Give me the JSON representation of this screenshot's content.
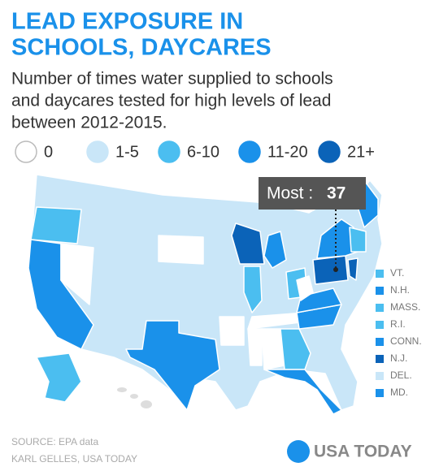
{
  "header": {
    "title_lines": [
      "LEAD EXPOSURE IN",
      "SCHOOLS, DAYCARES"
    ],
    "subtitle_lines": [
      "Number of times water supplied to schools",
      "and daycares tested for high levels of lead",
      "between 2012-2015."
    ]
  },
  "legend": [
    {
      "label": "0",
      "color": "#ffffff"
    },
    {
      "label": "1-5",
      "color": "#c9e6f8"
    },
    {
      "label": "6-10",
      "color": "#4bbef0"
    },
    {
      "label": "11-20",
      "color": "#1a91ea"
    },
    {
      "label": "21+",
      "color": "#0b63b8"
    }
  ],
  "callout": {
    "label": "Most :",
    "value": 37
  },
  "small_states": [
    {
      "label": "VT.",
      "color": "#4bbef0"
    },
    {
      "label": "N.H.",
      "color": "#1a91ea"
    },
    {
      "label": "MASS.",
      "color": "#4bbef0"
    },
    {
      "label": "R.I.",
      "color": "#4bbef0"
    },
    {
      "label": "CONN.",
      "color": "#1a91ea"
    },
    {
      "label": "N.J.",
      "color": "#0b63b8"
    },
    {
      "label": "DEL.",
      "color": "#c9e6f8"
    },
    {
      "label": "MD.",
      "color": "#1a91ea"
    }
  ],
  "footer": {
    "source": "SOURCE: EPA data",
    "credit": "KARL GELLES, USA TODAY",
    "logo": "USA TODAY"
  }
}
